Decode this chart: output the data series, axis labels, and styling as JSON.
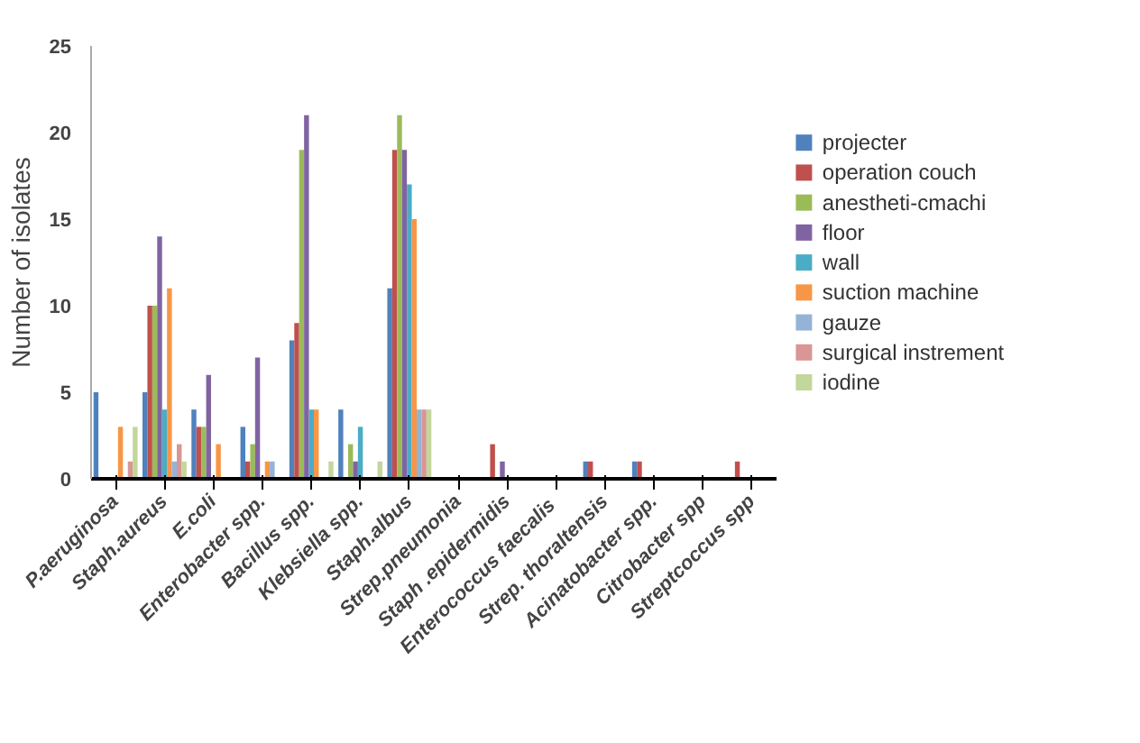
{
  "chart_data": {
    "type": "bar",
    "ylabel": "Number of isolates",
    "categories": [
      "P.aeruginosa",
      "Staph.aureus",
      "E.coli",
      "Enterobacter spp.",
      "Bacillus spp.",
      "Klebsiella spp.",
      "Staph.albus",
      "Strep.pneumonia",
      "Staph .epidermidis",
      "Enterococcus  faecalis",
      "Strep. thoraltensis",
      "Acinatobacter spp.",
      "Citrobacter spp",
      "Streptcoccus spp"
    ],
    "series": [
      {
        "name": "projecter",
        "color": "#4f81bd",
        "values": [
          5,
          5,
          4,
          3,
          8,
          4,
          11,
          0,
          0,
          0,
          1,
          1,
          0,
          0
        ]
      },
      {
        "name": "operation  couch",
        "color": "#c0504d",
        "values": [
          0,
          10,
          3,
          1,
          9,
          0,
          19,
          0,
          2,
          0,
          1,
          1,
          0,
          1
        ]
      },
      {
        "name": "anestheti-cmachi",
        "color": "#9bbb59",
        "values": [
          0,
          10,
          3,
          2,
          19,
          2,
          21,
          0,
          0,
          0,
          0,
          0,
          0,
          0
        ]
      },
      {
        "name": "floor",
        "color": "#8064a2",
        "values": [
          0,
          14,
          6,
          7,
          21,
          1,
          19,
          0,
          1,
          0,
          0,
          0,
          0,
          0
        ]
      },
      {
        "name": "wall",
        "color": "#4bacc6",
        "values": [
          0,
          4,
          0,
          0,
          4,
          3,
          17,
          0,
          0,
          0,
          0,
          0,
          0,
          0
        ]
      },
      {
        "name": "suction machine",
        "color": "#f79646",
        "values": [
          3,
          11,
          2,
          1,
          4,
          0,
          15,
          0,
          0,
          0,
          0,
          0,
          0,
          0
        ]
      },
      {
        "name": "gauze",
        "color": "#95b3d7",
        "values": [
          0,
          1,
          0,
          1,
          0,
          0,
          4,
          0,
          0,
          0,
          0,
          0,
          0,
          0
        ]
      },
      {
        "name": "surgical instrement",
        "color": "#d99694",
        "values": [
          1,
          2,
          0,
          0,
          0,
          0,
          4,
          0,
          0,
          0,
          0,
          0,
          0,
          0
        ]
      },
      {
        "name": "iodine",
        "color": "#c3d69b",
        "values": [
          3,
          1,
          0,
          0,
          1,
          1,
          4,
          0,
          0,
          0,
          0,
          0,
          0,
          0
        ]
      }
    ],
    "ylim": [
      0,
      25
    ],
    "yticks": [
      0,
      5,
      10,
      15,
      20,
      25
    ],
    "legend": "right"
  }
}
